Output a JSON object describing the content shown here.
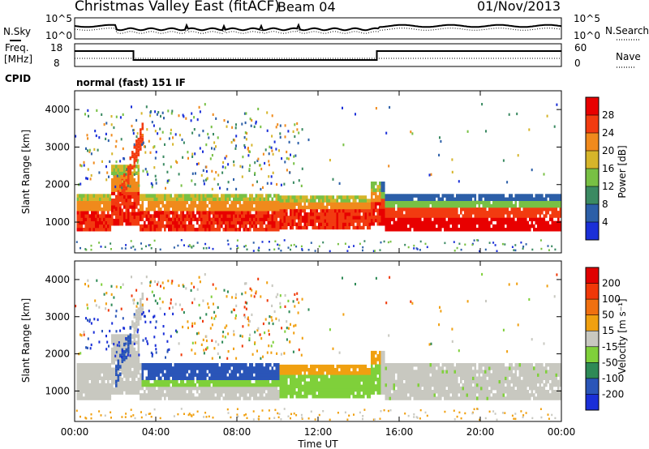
{
  "header": {
    "station": "Christmas Valley East (fitACF)",
    "beam": "Beam 04",
    "date": "01/Nov/2013"
  },
  "noise_panel": {
    "left_label": "N.Sky",
    "right_label": "N.Search",
    "left_ticks": [
      "10^5",
      "10^0"
    ],
    "right_ticks": [
      "10^5",
      "10^0"
    ]
  },
  "freq_panel": {
    "left_label_1": "Freq.",
    "left_label_2": "[MHz]",
    "right_label": "Nave",
    "left_ticks": [
      "18",
      "8"
    ],
    "right_ticks": [
      "60",
      "0"
    ]
  },
  "cpid": {
    "label": "CPID",
    "value": "normal (fast) 151 IF"
  },
  "chart_data": [
    {
      "type": "heatmap",
      "name": "power",
      "xlabel": "Time UT",
      "ylabel": "Slant Range [km]",
      "xticks": [
        "00:00",
        "04:00",
        "08:00",
        "12:00",
        "16:00",
        "20:00",
        "00:00"
      ],
      "xlim_hours": [
        0,
        24
      ],
      "ylim": [
        180,
        4500
      ],
      "yticks": [
        1000,
        2000,
        3000,
        4000
      ],
      "colorbar": {
        "label": "Power [dB]",
        "ticks": [
          "4",
          "8",
          "12",
          "16",
          "20",
          "24",
          "28"
        ],
        "colors": [
          "#1a2fd8",
          "#2c5fa8",
          "#3b8a62",
          "#78c044",
          "#d6b52a",
          "#f08a1c",
          "#f23b10",
          "#e80000"
        ]
      }
    },
    {
      "type": "heatmap",
      "name": "velocity",
      "xlabel": "Time UT",
      "ylabel": "Slant Range [km]",
      "xticks": [
        "00:00",
        "04:00",
        "08:00",
        "12:00",
        "16:00",
        "20:00",
        "00:00"
      ],
      "xlim_hours": [
        0,
        24
      ],
      "ylim": [
        180,
        4500
      ],
      "yticks": [
        1000,
        2000,
        3000,
        4000
      ],
      "colorbar": {
        "label": "Velocity [m s⁻¹]",
        "ticks": [
          "200",
          "100",
          "50",
          "15",
          "-15",
          "-50",
          "-100",
          "-200"
        ],
        "colors": [
          "#1a2fd8",
          "#2a55b8",
          "#2e8a56",
          "#7fd03a",
          "#c8c8c0",
          "#f0a010",
          "#f07010",
          "#f03808",
          "#e00000"
        ]
      }
    }
  ]
}
